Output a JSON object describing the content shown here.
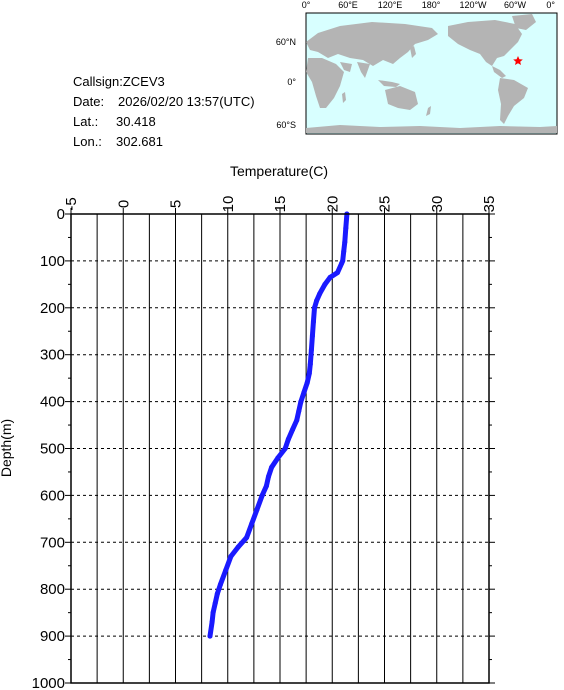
{
  "info": {
    "callsign": "Callsign:ZCEV3",
    "date_label": "Date:",
    "date_value": "2026/02/20 13:57(UTC)",
    "lat_label": "Lat.:",
    "lat_value": "30.418",
    "lon_label": "Lon.:",
    "lon_value": "302.681"
  },
  "map": {
    "lon_labels": [
      "0°",
      "60°E",
      "120°E",
      "180°",
      "120°W",
      "60°W",
      "0°"
    ],
    "lat_labels": [
      "60°N",
      "0°",
      "60°S"
    ],
    "ocean_color": "#d8ffff",
    "land_color": "#b4b4b4",
    "marker_color": "#ff0000",
    "marker_icon": "star-icon"
  },
  "chart_data": {
    "type": "line",
    "xlabel": "Temperature(C)",
    "ylabel": "Depth(m)",
    "xlim": [
      -5,
      35
    ],
    "ylim": [
      0,
      1000
    ],
    "y_inverted": true,
    "x_ticks": [
      "-5",
      "0",
      "5",
      "10",
      "15",
      "20",
      "25",
      "30",
      "35"
    ],
    "y_ticks": [
      "0",
      "100",
      "200",
      "300",
      "400",
      "500",
      "600",
      "700",
      "800",
      "900",
      "1000"
    ],
    "grid": true,
    "line_color": "#1a1aff",
    "series": [
      {
        "x": [
          21.4,
          21.3,
          21.2,
          21.1,
          21.0,
          20.9,
          20.5,
          19.8,
          19.3,
          18.8,
          18.5,
          18.3,
          18.2,
          18.1,
          18.0,
          17.9,
          17.8,
          17.6,
          17.3,
          17.0,
          16.8,
          16.6,
          16.2,
          15.8,
          15.5,
          14.8,
          14.2,
          13.9,
          13.7,
          13.3,
          12.8,
          12.3,
          11.8,
          11.0,
          10.3,
          9.8,
          9.3,
          9.0,
          8.8,
          8.6,
          8.5,
          8.3
        ],
        "y": [
          0,
          30,
          60,
          80,
          100,
          105,
          125,
          135,
          150,
          170,
          185,
          200,
          230,
          260,
          290,
          320,
          340,
          360,
          380,
          400,
          420,
          440,
          460,
          480,
          500,
          520,
          540,
          560,
          580,
          600,
          630,
          660,
          690,
          710,
          730,
          760,
          790,
          810,
          830,
          850,
          870,
          900
        ]
      }
    ]
  }
}
